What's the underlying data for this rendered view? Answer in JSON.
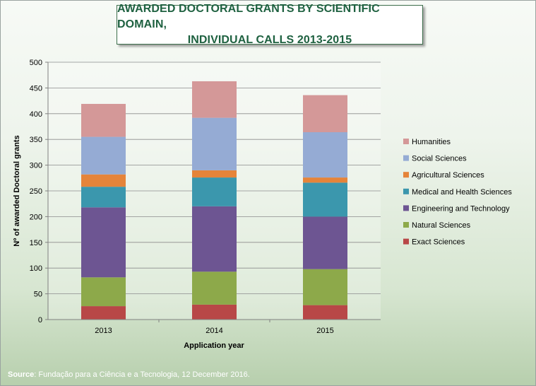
{
  "chart_data": {
    "type": "bar",
    "stacked": true,
    "title_line1": "AWARDED DOCTORAL GRANTS BY SCIENTIFIC DOMAIN,",
    "title_line2": "INDIVIDUAL CALLS 2013-2015",
    "xlabel": "Application year",
    "ylabel": "Nº of awarded Doctoral grants",
    "ylim": [
      0,
      500
    ],
    "yticks": [
      "0",
      "50",
      "100",
      "150",
      "200",
      "250",
      "300",
      "350",
      "400",
      "450",
      "500"
    ],
    "categories": [
      "2013",
      "2014",
      "2015"
    ],
    "grid": true,
    "legend_position": "right",
    "series": [
      {
        "name": "Exact Sciences",
        "color": "#b84747",
        "values": [
          26,
          29,
          28
        ]
      },
      {
        "name": "Natural Sciences",
        "color": "#8da94a",
        "values": [
          56,
          64,
          70
        ]
      },
      {
        "name": "Engineering and Technology",
        "color": "#6d5592",
        "values": [
          136,
          127,
          102
        ]
      },
      {
        "name": "Medical and Health Sciences",
        "color": "#3b97ad",
        "values": [
          40,
          56,
          66
        ]
      },
      {
        "name": "Agricultural Sciences",
        "color": "#e5843a",
        "values": [
          24,
          14,
          10
        ]
      },
      {
        "name": "Social Sciences",
        "color": "#95abd4",
        "values": [
          73,
          102,
          88
        ]
      },
      {
        "name": "Humanities",
        "color": "#d49898",
        "values": [
          64,
          71,
          72
        ]
      }
    ]
  },
  "source": {
    "label": "Source",
    "text": ": Fundação para a Ciência e a Tecnologia, 12 December 2016."
  }
}
